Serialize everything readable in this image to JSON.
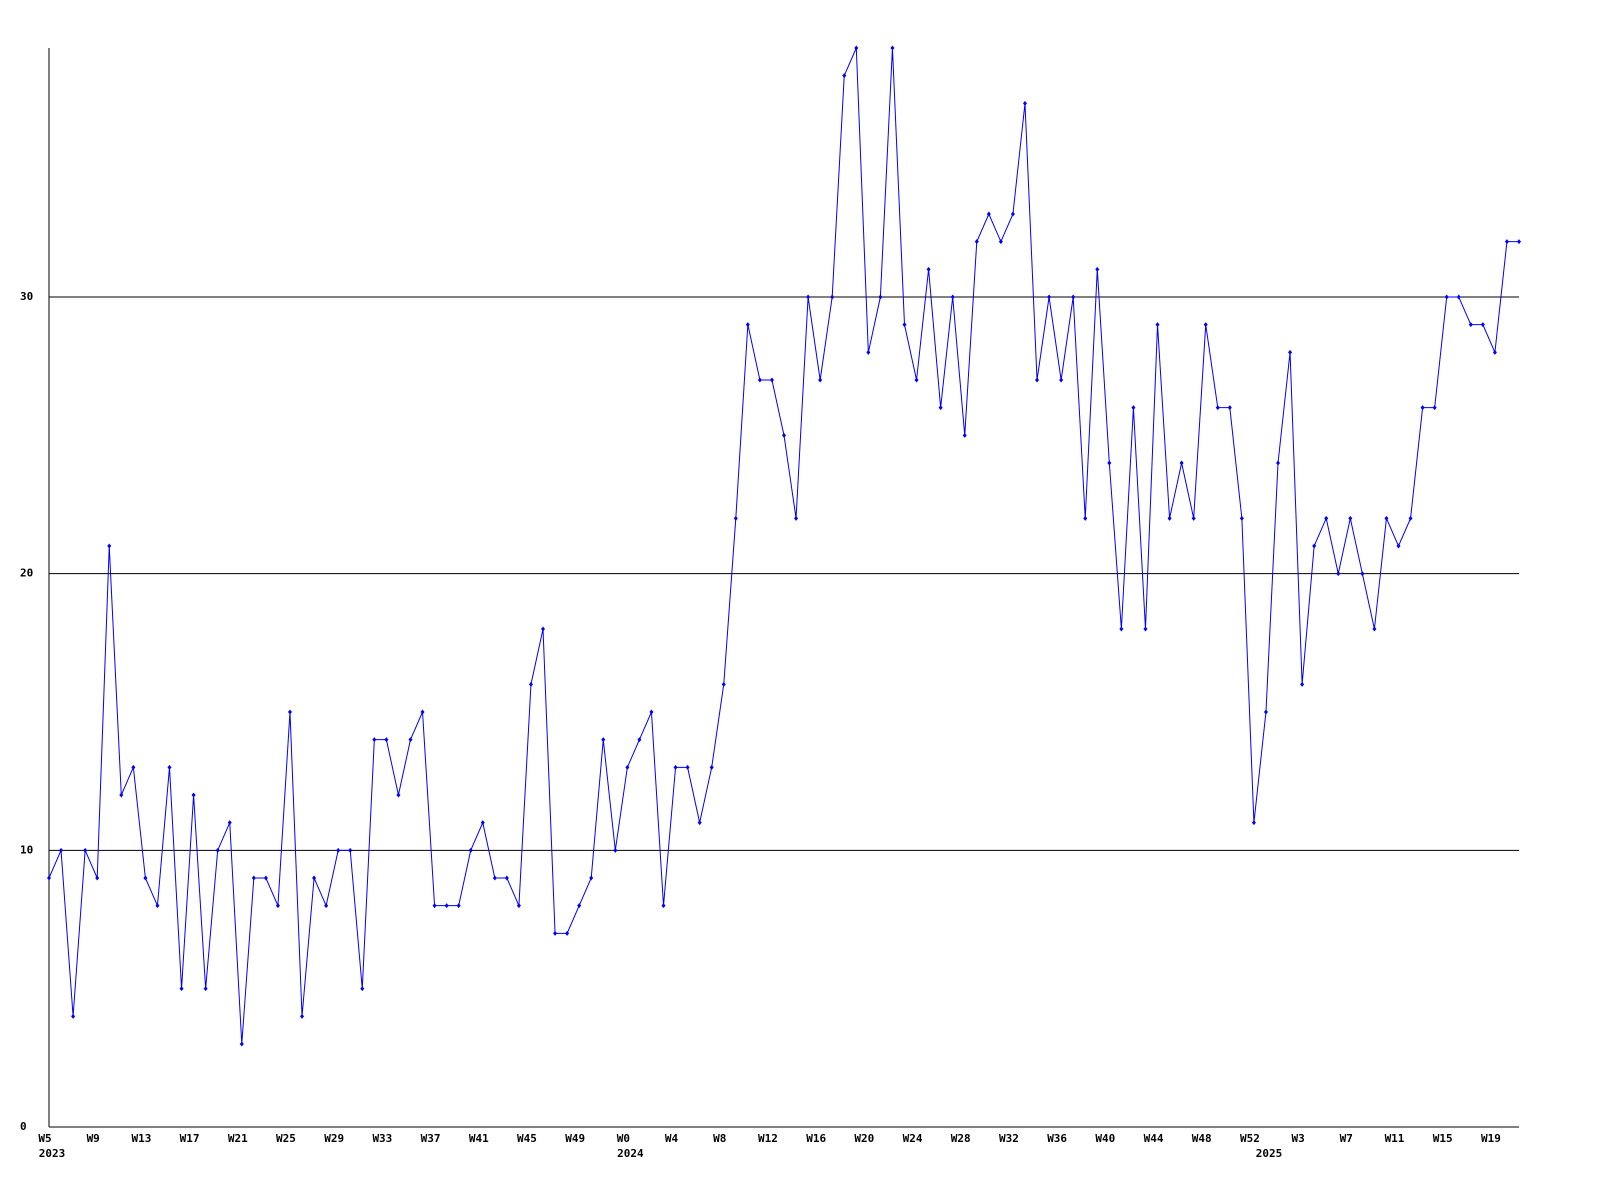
{
  "chart_data": {
    "type": "line",
    "categories": [
      "W5",
      null,
      null,
      null,
      "W9",
      null,
      null,
      null,
      "W13",
      null,
      null,
      null,
      "W17",
      null,
      null,
      null,
      "W21",
      null,
      null,
      null,
      "W25",
      null,
      null,
      null,
      "W29",
      null,
      null,
      null,
      "W33",
      null,
      null,
      null,
      "W37",
      null,
      null,
      null,
      "W41",
      null,
      null,
      null,
      "W45",
      null,
      null,
      null,
      "W49",
      null,
      null,
      null,
      "W0",
      null,
      null,
      null,
      "W4",
      null,
      null,
      null,
      "W8",
      null,
      null,
      null,
      "W12",
      null,
      null,
      null,
      "W16",
      null,
      null,
      null,
      "W20",
      null,
      null,
      null,
      "W24",
      null,
      null,
      null,
      "W28",
      null,
      null,
      null,
      "W32",
      null,
      null,
      null,
      "W36",
      null,
      null,
      null,
      "W40",
      null,
      null,
      null,
      "W44",
      null,
      null,
      null,
      "W48",
      null,
      null,
      null,
      "W52",
      null,
      null,
      null,
      "W3",
      null,
      null,
      null,
      "W7",
      null,
      null,
      null,
      "W11",
      null,
      null,
      null,
      "W15",
      null,
      null,
      null,
      "W19",
      null,
      null
    ],
    "x_years": [
      "2023",
      null,
      null,
      null,
      null,
      null,
      null,
      null,
      null,
      null,
      null,
      null,
      null,
      null,
      null,
      null,
      null,
      null,
      null,
      null,
      null,
      null,
      null,
      null,
      null,
      null,
      null,
      null,
      null,
      null,
      null,
      null,
      null,
      null,
      null,
      null,
      null,
      null,
      null,
      null,
      null,
      null,
      null,
      null,
      null,
      null,
      null,
      null,
      "2024",
      null,
      null,
      null,
      null,
      null,
      null,
      null,
      null,
      null,
      null,
      null,
      null,
      null,
      null,
      null,
      null,
      null,
      null,
      null,
      null,
      null,
      null,
      null,
      null,
      null,
      null,
      null,
      null,
      null,
      null,
      null,
      null,
      null,
      null,
      null,
      null,
      null,
      null,
      null,
      null,
      null,
      null,
      null,
      null,
      null,
      null,
      null,
      null,
      null,
      null,
      null,
      null,
      "2025",
      null,
      null,
      null,
      null,
      null,
      null,
      null,
      null,
      null,
      null,
      null,
      null,
      null,
      null,
      null,
      null,
      null,
      null,
      null,
      null
    ],
    "series": [
      {
        "color": "#0000ff",
        "values": [
          9,
          10,
          4,
          10,
          9,
          21,
          12,
          13,
          9,
          8,
          13,
          5,
          12,
          5,
          10,
          11,
          3,
          9,
          9,
          8,
          15,
          4,
          9,
          8,
          10,
          10,
          5,
          14,
          14,
          12,
          14,
          15,
          8,
          8,
          8,
          10,
          11,
          9,
          9,
          8,
          16,
          18,
          7,
          7,
          8,
          9,
          14,
          10,
          13,
          14,
          15,
          8,
          13,
          13,
          11,
          13,
          16,
          22,
          29,
          27,
          27,
          25,
          22,
          30,
          27,
          30,
          38,
          39,
          28,
          30,
          39,
          29,
          27,
          31,
          26,
          30,
          25,
          32,
          33,
          32,
          33,
          37,
          27,
          30,
          27,
          30,
          22,
          31,
          24,
          18,
          26,
          18,
          29,
          22,
          24,
          22,
          29,
          26,
          26,
          22,
          11,
          15,
          24,
          28,
          16,
          21,
          22,
          20,
          22,
          20,
          18,
          22,
          21,
          22,
          26,
          26,
          30,
          30,
          29,
          29,
          28,
          32,
          32
        ]
      }
    ],
    "ylim": [
      0,
      39
    ],
    "yticks": [
      0,
      10,
      20,
      30
    ],
    "grid": true
  }
}
